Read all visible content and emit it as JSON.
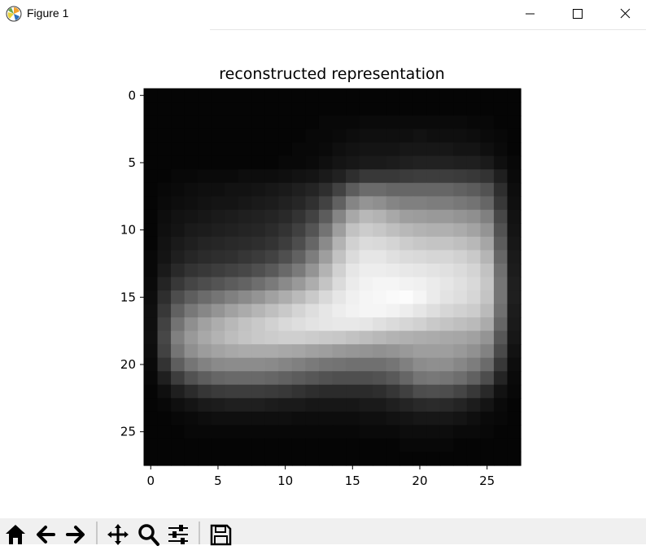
{
  "window": {
    "title": "Figure 1",
    "controls": [
      "minimize",
      "maximize",
      "close"
    ]
  },
  "toolbar": {
    "buttons": [
      {
        "name": "home",
        "icon": "home-icon"
      },
      {
        "name": "back",
        "icon": "arrow-left-icon"
      },
      {
        "name": "forward",
        "icon": "arrow-right-icon"
      },
      {
        "name": "pan",
        "icon": "move-icon"
      },
      {
        "name": "zoom",
        "icon": "magnifier-icon"
      },
      {
        "name": "configure-subplots",
        "icon": "sliders-icon"
      },
      {
        "name": "save",
        "icon": "floppy-disk-icon"
      }
    ]
  },
  "chart_data": {
    "type": "heatmap",
    "title": "reconstructed representation",
    "colormap": "gray",
    "shape": [
      28,
      28
    ],
    "x_ticks": [
      "0",
      "5",
      "10",
      "15",
      "20",
      "25"
    ],
    "y_ticks": [
      "0",
      "5",
      "10",
      "15",
      "20",
      "25"
    ],
    "xlim": [
      -0.5,
      27.5
    ],
    "ylim": [
      27.5,
      -0.5
    ],
    "grid": false,
    "intensity_peak": {
      "row": 15,
      "col": 19
    },
    "description_values": [
      [
        0.02,
        0.02,
        0.02,
        0.02,
        0.02,
        0.02,
        0.02,
        0.02,
        0.02,
        0.02,
        0.02,
        0.02,
        0.02,
        0.02,
        0.02,
        0.02,
        0.02,
        0.02,
        0.02,
        0.02,
        0.02,
        0.02,
        0.02,
        0.02,
        0.02,
        0.02,
        0.02,
        0.02
      ],
      [
        0.02,
        0.02,
        0.02,
        0.02,
        0.02,
        0.02,
        0.02,
        0.02,
        0.02,
        0.02,
        0.02,
        0.02,
        0.02,
        0.02,
        0.02,
        0.02,
        0.02,
        0.02,
        0.02,
        0.02,
        0.02,
        0.02,
        0.02,
        0.02,
        0.02,
        0.02,
        0.02,
        0.02
      ],
      [
        0.02,
        0.02,
        0.02,
        0.02,
        0.02,
        0.02,
        0.02,
        0.02,
        0.02,
        0.02,
        0.02,
        0.02,
        0.02,
        0.03,
        0.03,
        0.03,
        0.04,
        0.04,
        0.04,
        0.04,
        0.04,
        0.04,
        0.04,
        0.04,
        0.03,
        0.03,
        0.02,
        0.02
      ],
      [
        0.02,
        0.02,
        0.02,
        0.02,
        0.02,
        0.02,
        0.02,
        0.02,
        0.02,
        0.02,
        0.02,
        0.02,
        0.03,
        0.03,
        0.04,
        0.05,
        0.06,
        0.06,
        0.06,
        0.06,
        0.07,
        0.06,
        0.06,
        0.06,
        0.05,
        0.04,
        0.03,
        0.02
      ],
      [
        0.02,
        0.02,
        0.02,
        0.02,
        0.02,
        0.02,
        0.02,
        0.02,
        0.02,
        0.02,
        0.02,
        0.03,
        0.03,
        0.04,
        0.06,
        0.07,
        0.08,
        0.08,
        0.08,
        0.09,
        0.09,
        0.09,
        0.09,
        0.08,
        0.08,
        0.06,
        0.04,
        0.02
      ],
      [
        0.02,
        0.02,
        0.02,
        0.02,
        0.02,
        0.02,
        0.02,
        0.02,
        0.02,
        0.02,
        0.03,
        0.03,
        0.04,
        0.06,
        0.08,
        0.09,
        0.1,
        0.1,
        0.11,
        0.12,
        0.13,
        0.13,
        0.13,
        0.12,
        0.12,
        0.1,
        0.06,
        0.03
      ],
      [
        0.02,
        0.02,
        0.03,
        0.03,
        0.04,
        0.04,
        0.04,
        0.05,
        0.05,
        0.05,
        0.06,
        0.07,
        0.08,
        0.1,
        0.13,
        0.18,
        0.22,
        0.22,
        0.22,
        0.23,
        0.24,
        0.24,
        0.24,
        0.23,
        0.22,
        0.2,
        0.12,
        0.04
      ],
      [
        0.02,
        0.03,
        0.04,
        0.05,
        0.06,
        0.06,
        0.07,
        0.07,
        0.08,
        0.09,
        0.1,
        0.12,
        0.14,
        0.18,
        0.26,
        0.36,
        0.42,
        0.42,
        0.4,
        0.4,
        0.4,
        0.4,
        0.4,
        0.38,
        0.36,
        0.32,
        0.18,
        0.05
      ],
      [
        0.02,
        0.04,
        0.05,
        0.06,
        0.07,
        0.08,
        0.08,
        0.09,
        0.1,
        0.11,
        0.13,
        0.15,
        0.19,
        0.26,
        0.38,
        0.52,
        0.58,
        0.56,
        0.52,
        0.5,
        0.5,
        0.49,
        0.49,
        0.47,
        0.45,
        0.4,
        0.22,
        0.06
      ],
      [
        0.02,
        0.05,
        0.07,
        0.08,
        0.09,
        0.1,
        0.11,
        0.12,
        0.13,
        0.14,
        0.16,
        0.2,
        0.26,
        0.36,
        0.52,
        0.66,
        0.72,
        0.7,
        0.66,
        0.62,
        0.61,
        0.6,
        0.6,
        0.58,
        0.56,
        0.5,
        0.28,
        0.07
      ],
      [
        0.02,
        0.06,
        0.08,
        0.1,
        0.11,
        0.12,
        0.13,
        0.14,
        0.15,
        0.17,
        0.2,
        0.25,
        0.33,
        0.45,
        0.62,
        0.76,
        0.8,
        0.78,
        0.75,
        0.72,
        0.7,
        0.69,
        0.69,
        0.67,
        0.64,
        0.58,
        0.32,
        0.08
      ],
      [
        0.02,
        0.07,
        0.1,
        0.12,
        0.14,
        0.15,
        0.16,
        0.17,
        0.18,
        0.2,
        0.24,
        0.3,
        0.4,
        0.54,
        0.7,
        0.82,
        0.86,
        0.85,
        0.83,
        0.8,
        0.78,
        0.77,
        0.77,
        0.75,
        0.72,
        0.65,
        0.36,
        0.09
      ],
      [
        0.03,
        0.08,
        0.12,
        0.15,
        0.17,
        0.18,
        0.19,
        0.21,
        0.23,
        0.26,
        0.31,
        0.38,
        0.49,
        0.62,
        0.76,
        0.86,
        0.9,
        0.9,
        0.88,
        0.86,
        0.85,
        0.84,
        0.84,
        0.82,
        0.79,
        0.71,
        0.4,
        0.1
      ],
      [
        0.03,
        0.1,
        0.16,
        0.2,
        0.22,
        0.24,
        0.26,
        0.28,
        0.31,
        0.35,
        0.41,
        0.48,
        0.58,
        0.7,
        0.82,
        0.9,
        0.93,
        0.93,
        0.92,
        0.91,
        0.9,
        0.89,
        0.88,
        0.86,
        0.83,
        0.76,
        0.44,
        0.11
      ],
      [
        0.04,
        0.14,
        0.22,
        0.27,
        0.3,
        0.33,
        0.36,
        0.39,
        0.43,
        0.48,
        0.54,
        0.6,
        0.68,
        0.77,
        0.86,
        0.92,
        0.95,
        0.96,
        0.96,
        0.95,
        0.94,
        0.92,
        0.9,
        0.88,
        0.85,
        0.78,
        0.46,
        0.12
      ],
      [
        0.05,
        0.18,
        0.3,
        0.37,
        0.42,
        0.46,
        0.5,
        0.54,
        0.58,
        0.63,
        0.68,
        0.73,
        0.79,
        0.85,
        0.9,
        0.94,
        0.96,
        0.97,
        0.98,
        0.99,
        0.96,
        0.92,
        0.89,
        0.87,
        0.84,
        0.77,
        0.46,
        0.12
      ],
      [
        0.06,
        0.22,
        0.38,
        0.47,
        0.53,
        0.58,
        0.63,
        0.67,
        0.71,
        0.75,
        0.79,
        0.83,
        0.87,
        0.9,
        0.93,
        0.95,
        0.96,
        0.96,
        0.95,
        0.93,
        0.9,
        0.87,
        0.84,
        0.82,
        0.8,
        0.73,
        0.44,
        0.11
      ],
      [
        0.06,
        0.26,
        0.45,
        0.56,
        0.63,
        0.68,
        0.72,
        0.76,
        0.79,
        0.82,
        0.85,
        0.87,
        0.89,
        0.9,
        0.91,
        0.91,
        0.9,
        0.88,
        0.86,
        0.84,
        0.82,
        0.79,
        0.77,
        0.75,
        0.73,
        0.67,
        0.4,
        0.1
      ],
      [
        0.06,
        0.28,
        0.5,
        0.6,
        0.66,
        0.7,
        0.74,
        0.77,
        0.79,
        0.8,
        0.81,
        0.81,
        0.8,
        0.79,
        0.78,
        0.76,
        0.74,
        0.72,
        0.7,
        0.69,
        0.68,
        0.67,
        0.66,
        0.65,
        0.63,
        0.58,
        0.34,
        0.09
      ],
      [
        0.05,
        0.26,
        0.46,
        0.56,
        0.61,
        0.64,
        0.66,
        0.67,
        0.67,
        0.67,
        0.66,
        0.65,
        0.63,
        0.62,
        0.6,
        0.59,
        0.58,
        0.57,
        0.58,
        0.6,
        0.62,
        0.62,
        0.62,
        0.6,
        0.57,
        0.51,
        0.29,
        0.07
      ],
      [
        0.04,
        0.2,
        0.37,
        0.46,
        0.51,
        0.54,
        0.55,
        0.55,
        0.55,
        0.54,
        0.52,
        0.5,
        0.48,
        0.46,
        0.45,
        0.44,
        0.44,
        0.44,
        0.46,
        0.5,
        0.55,
        0.56,
        0.56,
        0.53,
        0.49,
        0.42,
        0.22,
        0.05
      ],
      [
        0.03,
        0.12,
        0.24,
        0.32,
        0.37,
        0.4,
        0.41,
        0.41,
        0.41,
        0.4,
        0.38,
        0.36,
        0.34,
        0.32,
        0.31,
        0.31,
        0.31,
        0.32,
        0.35,
        0.4,
        0.46,
        0.47,
        0.46,
        0.43,
        0.38,
        0.3,
        0.14,
        0.04
      ],
      [
        0.02,
        0.06,
        0.12,
        0.17,
        0.21,
        0.23,
        0.24,
        0.24,
        0.24,
        0.23,
        0.22,
        0.2,
        0.18,
        0.17,
        0.17,
        0.17,
        0.17,
        0.18,
        0.21,
        0.25,
        0.3,
        0.31,
        0.3,
        0.27,
        0.22,
        0.16,
        0.07,
        0.03
      ],
      [
        0.02,
        0.03,
        0.06,
        0.08,
        0.1,
        0.11,
        0.12,
        0.12,
        0.12,
        0.11,
        0.1,
        0.1,
        0.09,
        0.09,
        0.09,
        0.09,
        0.1,
        0.1,
        0.12,
        0.14,
        0.16,
        0.17,
        0.16,
        0.14,
        0.11,
        0.08,
        0.04,
        0.02
      ],
      [
        0.02,
        0.02,
        0.03,
        0.04,
        0.05,
        0.06,
        0.06,
        0.06,
        0.06,
        0.06,
        0.06,
        0.05,
        0.05,
        0.05,
        0.05,
        0.05,
        0.06,
        0.06,
        0.07,
        0.08,
        0.09,
        0.09,
        0.09,
        0.08,
        0.06,
        0.04,
        0.03,
        0.02
      ],
      [
        0.02,
        0.02,
        0.02,
        0.03,
        0.03,
        0.03,
        0.03,
        0.03,
        0.03,
        0.03,
        0.03,
        0.03,
        0.03,
        0.03,
        0.03,
        0.03,
        0.04,
        0.04,
        0.04,
        0.05,
        0.05,
        0.05,
        0.05,
        0.04,
        0.04,
        0.03,
        0.02,
        0.02
      ],
      [
        0.02,
        0.02,
        0.02,
        0.02,
        0.02,
        0.02,
        0.02,
        0.02,
        0.02,
        0.02,
        0.02,
        0.02,
        0.02,
        0.02,
        0.02,
        0.02,
        0.02,
        0.02,
        0.02,
        0.03,
        0.03,
        0.03,
        0.03,
        0.02,
        0.02,
        0.02,
        0.02,
        0.02
      ],
      [
        0.02,
        0.02,
        0.02,
        0.02,
        0.02,
        0.02,
        0.02,
        0.02,
        0.02,
        0.02,
        0.02,
        0.02,
        0.02,
        0.02,
        0.02,
        0.02,
        0.02,
        0.02,
        0.02,
        0.02,
        0.02,
        0.02,
        0.02,
        0.02,
        0.02,
        0.02,
        0.02,
        0.02
      ]
    ]
  }
}
